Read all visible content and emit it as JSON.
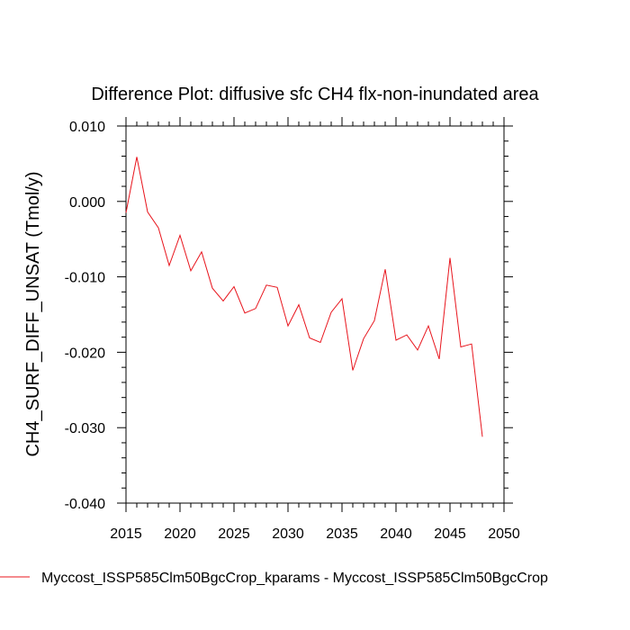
{
  "chart_data": {
    "type": "line",
    "title": "Difference Plot: diffusive sfc CH4 flx-non-inundated area",
    "xlabel": "",
    "ylabel": "CH4_SURF_DIFF_UNSAT  (Tmol/y)",
    "xlim": [
      2015,
      2050
    ],
    "ylim": [
      -0.04,
      0.01
    ],
    "xticks": [
      2015,
      2020,
      2025,
      2030,
      2035,
      2040,
      2045,
      2050
    ],
    "xtick_labels": [
      "2015",
      "2020",
      "2025",
      "2030",
      "2035",
      "2040",
      "2045",
      "2050"
    ],
    "yticks": [
      0.01,
      0.0,
      -0.01,
      -0.02,
      -0.03,
      -0.04
    ],
    "ytick_labels": [
      "0.010",
      "0.000",
      "-0.010",
      "-0.020",
      "-0.030",
      "-0.040"
    ],
    "grid": false,
    "legend_position": "bottom",
    "series": [
      {
        "name": "Myccost_ISSP585Clm50BgcCrop_kparams - Myccost_ISSP585Clm50BgcCrop",
        "color": "#e8141c",
        "x": [
          2015,
          2016,
          2017,
          2018,
          2019,
          2020,
          2021,
          2022,
          2023,
          2024,
          2025,
          2026,
          2027,
          2028,
          2029,
          2030,
          2031,
          2032,
          2033,
          2034,
          2035,
          2036,
          2037,
          2038,
          2039,
          2040,
          2041,
          2042,
          2043,
          2044,
          2045,
          2046,
          2047,
          2048
        ],
        "y": [
          -0.0015,
          0.0059,
          -0.0014,
          -0.0035,
          -0.0085,
          -0.0045,
          -0.0092,
          -0.0067,
          -0.0115,
          -0.0132,
          -0.0113,
          -0.0148,
          -0.0142,
          -0.0111,
          -0.0114,
          -0.0165,
          -0.0137,
          -0.0181,
          -0.0187,
          -0.0147,
          -0.0129,
          -0.0224,
          -0.0182,
          -0.0158,
          -0.009,
          -0.0184,
          -0.0177,
          -0.0197,
          -0.0165,
          -0.0209,
          -0.0075,
          -0.0193,
          -0.0189,
          -0.0312
        ]
      }
    ]
  }
}
